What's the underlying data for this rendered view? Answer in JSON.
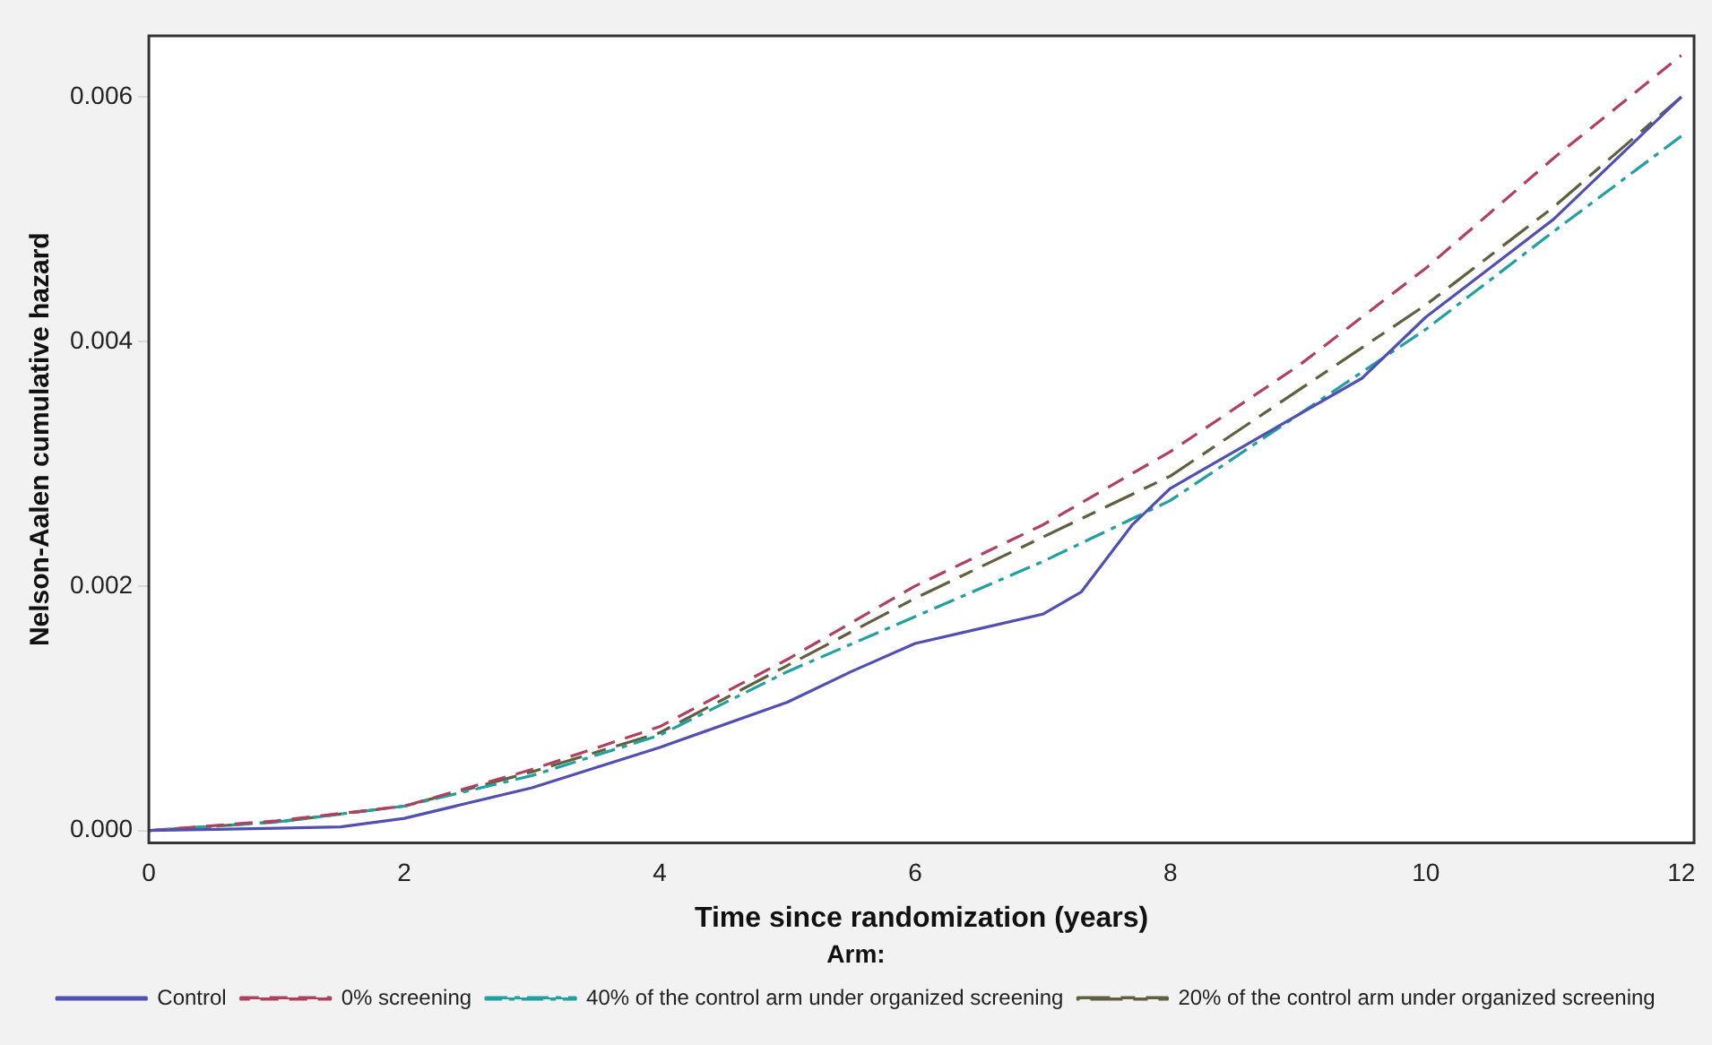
{
  "chart_data": {
    "type": "line",
    "xlabel": "Time since randomization (years)",
    "ylabel": "Nelson-Aalen cumulative hazard",
    "legend_title": "Arm:",
    "legend": "bottom",
    "grid": false,
    "marker": "none",
    "xlim": [
      0,
      12.1
    ],
    "xticks": [
      0,
      2,
      4,
      6,
      8,
      10,
      12
    ],
    "ylim": [
      -0.0001,
      0.0065
    ],
    "yticks": [
      {
        "value": 0,
        "label": "0.000"
      },
      {
        "value": 0.002,
        "label": "0.002"
      },
      {
        "value": 0.004,
        "label": "0.004"
      },
      {
        "value": 0.006,
        "label": "0.006"
      }
    ],
    "series": [
      {
        "name": "Control",
        "color": "#5050b0",
        "line_style": "solid",
        "x": [
          0,
          1,
          1.5,
          2,
          3,
          4,
          5,
          5.5,
          6,
          6.5,
          7,
          7.3,
          7.7,
          8,
          8.5,
          9,
          9.5,
          10,
          10.5,
          11,
          11.5,
          12
        ],
        "values": [
          0,
          2e-05,
          3e-05,
          0.0001,
          0.00035,
          0.00068,
          0.00105,
          0.0013,
          0.00153,
          0.00165,
          0.00177,
          0.00195,
          0.0025,
          0.0028,
          0.0031,
          0.0034,
          0.0037,
          0.0042,
          0.0046,
          0.005,
          0.0055,
          0.006
        ]
      },
      {
        "name": "0% screening",
        "color": "#b04060",
        "line_style": "dashed",
        "x": [
          0,
          1,
          2,
          3,
          4,
          5,
          6,
          7,
          8,
          9,
          10,
          11,
          12
        ],
        "values": [
          0,
          8e-05,
          0.0002,
          0.0005,
          0.00085,
          0.0014,
          0.002,
          0.0025,
          0.0031,
          0.0038,
          0.0046,
          0.0055,
          0.00634
        ]
      },
      {
        "name": "40% of the control arm under organized screening",
        "color": "#20a0a0",
        "line_style": "dashed",
        "x": [
          0,
          1,
          2,
          3,
          4,
          5,
          6,
          7,
          8,
          9,
          10,
          11,
          12
        ],
        "values": [
          0,
          7e-05,
          0.0002,
          0.00045,
          0.00078,
          0.0013,
          0.00175,
          0.0022,
          0.0027,
          0.0034,
          0.0041,
          0.0049,
          0.00568
        ]
      },
      {
        "name": "20% of the control arm under organized screening",
        "color": "#606040",
        "line_style": "dashed",
        "x": [
          0,
          1,
          2,
          3,
          4,
          5,
          6,
          7,
          8,
          9,
          10,
          11,
          12
        ],
        "values": [
          0,
          7e-05,
          0.0002,
          0.00048,
          0.0008,
          0.00135,
          0.0019,
          0.0024,
          0.0029,
          0.0036,
          0.0043,
          0.0051,
          0.006
        ]
      }
    ]
  }
}
